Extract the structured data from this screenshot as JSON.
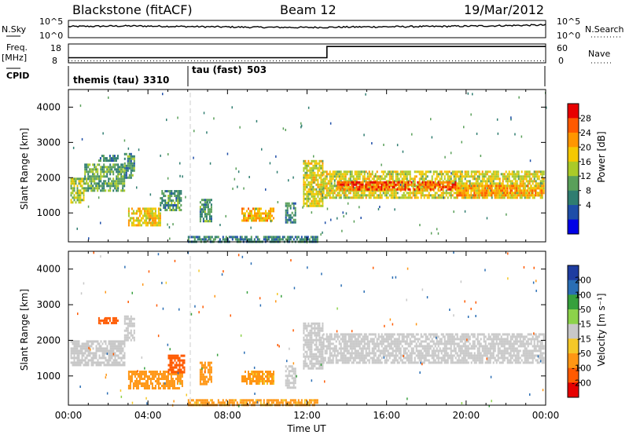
{
  "header": {
    "station": "Blackstone (fitACF)",
    "beam": "Beam 12",
    "date": "19/Mar/2012"
  },
  "top_panels": {
    "nsky_label": "N.Sky",
    "nsearch_label": "N.Search",
    "nsky_ticks": [
      "10^5",
      "10^0"
    ],
    "nsearch_ticks": [
      "10^5",
      "10^0"
    ],
    "freq_label_line1": "Freq.",
    "freq_label_line2": "[MHz]",
    "freq_ticks": [
      "18",
      "8"
    ],
    "nave_label": "Nave",
    "nave_ticks": [
      "60",
      "0"
    ],
    "cpid_label": "CPID",
    "cpid_segments": [
      {
        "name": "themis (tau)",
        "id": "3310"
      },
      {
        "name": "tau (fast)",
        "id": "503"
      }
    ]
  },
  "chart_data": [
    {
      "type": "line",
      "title": "",
      "series": [
        {
          "name": "N.Sky",
          "style": "solid",
          "x": [
            0,
            3,
            6,
            9,
            12,
            15,
            18,
            21,
            24
          ],
          "y_log10": [
            3.3,
            3.5,
            3.3,
            3.1,
            3.0,
            3.2,
            3.3,
            3.5,
            3.8
          ]
        },
        {
          "name": "N.Search",
          "style": "dotted",
          "x": [
            0,
            24
          ],
          "y_log10": [
            0,
            0
          ]
        }
      ],
      "ylim_log10": [
        0,
        5
      ]
    },
    {
      "type": "line",
      "series": [
        {
          "name": "Freq. [MHz]",
          "style": "solid",
          "x": [
            0,
            13,
            13,
            24
          ],
          "y": [
            10.5,
            10.5,
            17,
            17
          ]
        },
        {
          "name": "Nave",
          "style": "dotted",
          "x": [
            0,
            24
          ],
          "y": [
            4,
            4
          ]
        }
      ],
      "ylim_left": [
        8,
        18
      ],
      "ylim_right": [
        0,
        60
      ]
    },
    {
      "type": "heatmap",
      "quantity": "Power",
      "xlabel": "",
      "ylabel": "Slant Range [km]",
      "xlim": [
        0,
        24
      ],
      "ylim": [
        180,
        4500
      ],
      "yticks": [
        "4000",
        "3000",
        "2000",
        "1000"
      ],
      "colorbar": {
        "label": "Power [dB]",
        "ticks": [
          "28",
          "24",
          "20",
          "16",
          "12",
          "8",
          "4"
        ],
        "colors": [
          "#e80000",
          "#ff5a00",
          "#ff9600",
          "#f5c800",
          "#aaca28",
          "#5aa05a",
          "#2f7d70",
          "#1e4ea8",
          "#0000e6"
        ]
      },
      "regions": [
        {
          "t0": 0.1,
          "t1": 0.8,
          "r0": 1300,
          "r1": 2000,
          "value": 14
        },
        {
          "t0": 0.8,
          "t1": 2.8,
          "r0": 1600,
          "r1": 2400,
          "value": 10
        },
        {
          "t0": 2.8,
          "t1": 3.3,
          "r0": 2000,
          "r1": 2700,
          "value": 8
        },
        {
          "t0": 1.5,
          "t1": 2.5,
          "r0": 2500,
          "r1": 2650,
          "value": 6
        },
        {
          "t0": 3.0,
          "t1": 4.6,
          "r0": 650,
          "r1": 1150,
          "value": 18
        },
        {
          "t0": 4.6,
          "t1": 5.7,
          "r0": 1100,
          "r1": 1650,
          "value": 8
        },
        {
          "t0": 6.6,
          "t1": 7.2,
          "r0": 750,
          "r1": 1400,
          "value": 8
        },
        {
          "t0": 8.7,
          "t1": 10.3,
          "r0": 800,
          "r1": 1150,
          "value": 20
        },
        {
          "t0": 10.9,
          "t1": 11.4,
          "r0": 700,
          "r1": 1300,
          "value": 6
        },
        {
          "t0": 11.8,
          "t1": 12.8,
          "r0": 1200,
          "r1": 2500,
          "value": 16
        },
        {
          "t0": 12.8,
          "t1": 23.9,
          "r0": 1400,
          "r1": 2200,
          "value": 16
        },
        {
          "t0": 13.5,
          "t1": 19.5,
          "r0": 1650,
          "r1": 1900,
          "value": 26
        },
        {
          "t0": 19.5,
          "t1": 23.9,
          "r0": 1500,
          "r1": 1800,
          "value": 22
        },
        {
          "t0": 6.0,
          "t1": 12.5,
          "r0": 180,
          "r1": 350,
          "value": 6
        }
      ]
    },
    {
      "type": "heatmap",
      "quantity": "Velocity",
      "xlabel": "Time UT",
      "ylabel": "Slant Range [km]",
      "xlim": [
        0,
        24
      ],
      "ylim": [
        180,
        4500
      ],
      "xticks": [
        "00:00",
        "04:00",
        "08:00",
        "12:00",
        "16:00",
        "20:00",
        "00:00"
      ],
      "yticks": [
        "4000",
        "3000",
        "2000",
        "1000"
      ],
      "colorbar": {
        "label": "Velocity [m s⁻¹]",
        "ticks": [
          "200",
          "100",
          "50",
          "15",
          "-15",
          "-50",
          "-100",
          "-200"
        ],
        "colors": [
          "#1e3ca0",
          "#2a6eb4",
          "#36a03c",
          "#8cd24a",
          "#c8c8c8",
          "#f5c828",
          "#ff9614",
          "#ff5a00",
          "#e60000"
        ]
      },
      "regions": [
        {
          "t0": 0.1,
          "t1": 2.8,
          "r0": 1300,
          "r1": 2000,
          "value": 0
        },
        {
          "t0": 2.8,
          "t1": 3.3,
          "r0": 2000,
          "r1": 2700,
          "value": 0
        },
        {
          "t0": 1.5,
          "t1": 2.5,
          "r0": 2500,
          "r1": 2650,
          "value": -120
        },
        {
          "t0": 3.0,
          "t1": 5.7,
          "r0": 650,
          "r1": 1150,
          "value": -50
        },
        {
          "t0": 5.0,
          "t1": 5.8,
          "r0": 1100,
          "r1": 1600,
          "value": -100
        },
        {
          "t0": 6.6,
          "t1": 7.2,
          "r0": 750,
          "r1": 1400,
          "value": -50
        },
        {
          "t0": 8.7,
          "t1": 10.3,
          "r0": 800,
          "r1": 1150,
          "value": -40
        },
        {
          "t0": 10.9,
          "t1": 11.4,
          "r0": 700,
          "r1": 1300,
          "value": 0
        },
        {
          "t0": 11.8,
          "t1": 12.8,
          "r0": 1200,
          "r1": 2500,
          "value": 0
        },
        {
          "t0": 12.8,
          "t1": 23.9,
          "r0": 1400,
          "r1": 2200,
          "value": 0
        },
        {
          "t0": 6.0,
          "t1": 12.5,
          "r0": 180,
          "r1": 350,
          "value": -40
        }
      ]
    }
  ]
}
